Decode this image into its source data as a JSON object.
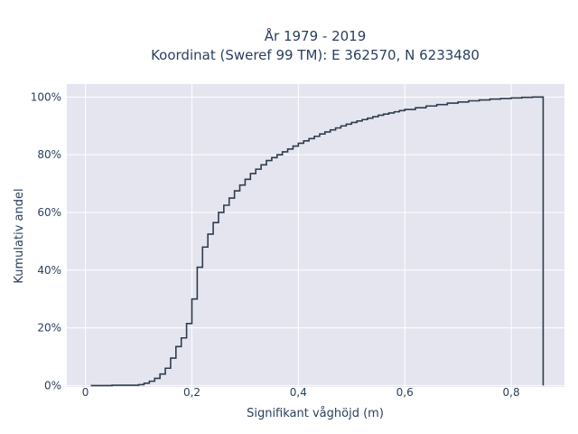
{
  "chart_data": {
    "type": "line",
    "line_shape": "step",
    "title": [
      "År 1979 - 2019",
      "Koordinat (Sweref 99 TM): E 362570, N 6233480"
    ],
    "xlabel": "Signifikant våghöjd (m)",
    "ylabel": "Kumulativ andel",
    "xlim": [
      -0.035,
      0.9
    ],
    "ylim": [
      -0.005,
      1.045
    ],
    "x_ticks": [
      0,
      0.2,
      0.4,
      0.6,
      0.8
    ],
    "x_tick_labels": [
      "0",
      "0,2",
      "0,4",
      "0,6",
      "0,8"
    ],
    "y_ticks": [
      0,
      0.2,
      0.4,
      0.6,
      0.8,
      1.0
    ],
    "y_tick_labels": [
      "0%",
      "20%",
      "40%",
      "60%",
      "80%",
      "100%"
    ],
    "grid": true,
    "background": "#e5e5ef",
    "line_color": "#2e3c4e",
    "series": [
      {
        "x": [
          0.01,
          0.05,
          0.1,
          0.11,
          0.12,
          0.13,
          0.14,
          0.15,
          0.16,
          0.17,
          0.18,
          0.19,
          0.2,
          0.21,
          0.22,
          0.23,
          0.24,
          0.25,
          0.26,
          0.27,
          0.28,
          0.29,
          0.3,
          0.31,
          0.32,
          0.33,
          0.34,
          0.35,
          0.36,
          0.37,
          0.38,
          0.39,
          0.4,
          0.41,
          0.42,
          0.43,
          0.44,
          0.45,
          0.46,
          0.47,
          0.48,
          0.49,
          0.5,
          0.51,
          0.52,
          0.53,
          0.54,
          0.55,
          0.56,
          0.57,
          0.58,
          0.59,
          0.6,
          0.62,
          0.64,
          0.66,
          0.68,
          0.7,
          0.72,
          0.74,
          0.76,
          0.78,
          0.8,
          0.82,
          0.84,
          0.86,
          0.86
        ],
        "y": [
          0,
          0.001,
          0.003,
          0.008,
          0.015,
          0.025,
          0.04,
          0.06,
          0.095,
          0.135,
          0.165,
          0.215,
          0.3,
          0.41,
          0.48,
          0.525,
          0.565,
          0.6,
          0.625,
          0.65,
          0.675,
          0.695,
          0.715,
          0.735,
          0.75,
          0.765,
          0.78,
          0.79,
          0.8,
          0.81,
          0.82,
          0.83,
          0.84,
          0.848,
          0.856,
          0.864,
          0.872,
          0.879,
          0.886,
          0.893,
          0.9,
          0.906,
          0.912,
          0.917,
          0.922,
          0.927,
          0.932,
          0.937,
          0.941,
          0.945,
          0.949,
          0.953,
          0.957,
          0.963,
          0.969,
          0.974,
          0.979,
          0.983,
          0.987,
          0.99,
          0.993,
          0.995,
          0.997,
          0.999,
          1.0,
          1.0,
          0
        ]
      }
    ]
  }
}
